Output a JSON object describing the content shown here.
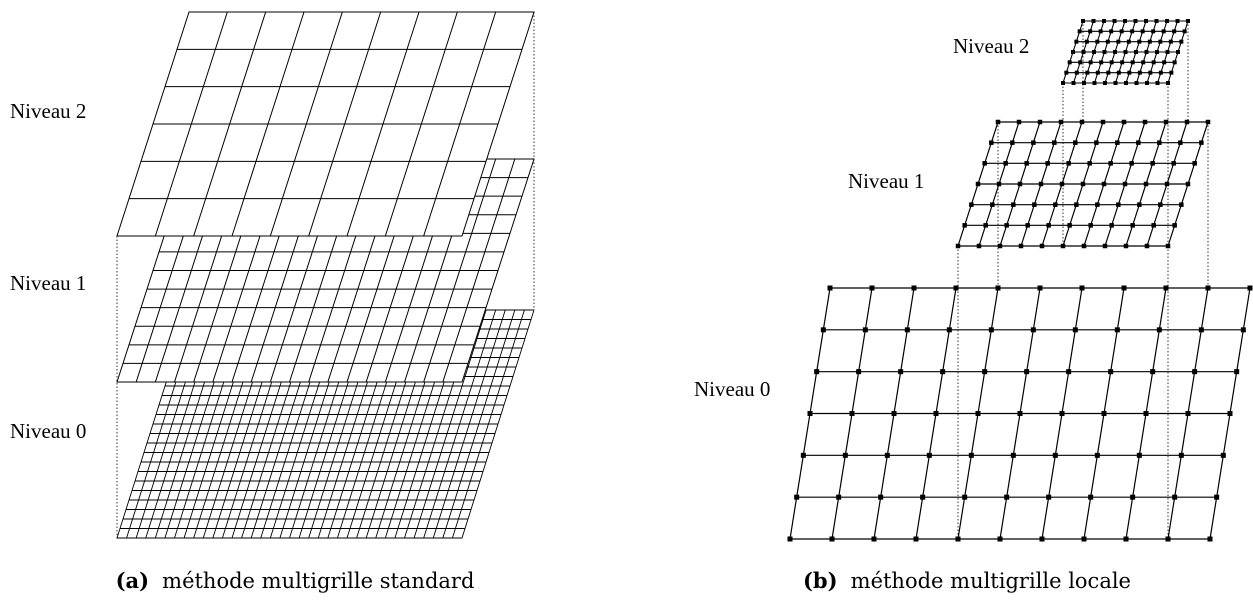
{
  "panel_a": {
    "labels": {
      "level2": "Niveau 2",
      "level1": "Niveau 1",
      "level0": "Niveau 0"
    },
    "caption": {
      "tag": "(a)",
      "text": "méthode multigrille standard"
    }
  },
  "panel_b": {
    "labels": {
      "level2": "Niveau 2",
      "level1": "Niveau 1",
      "level0": "Niveau 0"
    },
    "caption": {
      "tag": "(b)",
      "text": "méthode multigrille locale"
    }
  },
  "colors": {
    "ink": "#000000",
    "background": "#ffffff"
  }
}
